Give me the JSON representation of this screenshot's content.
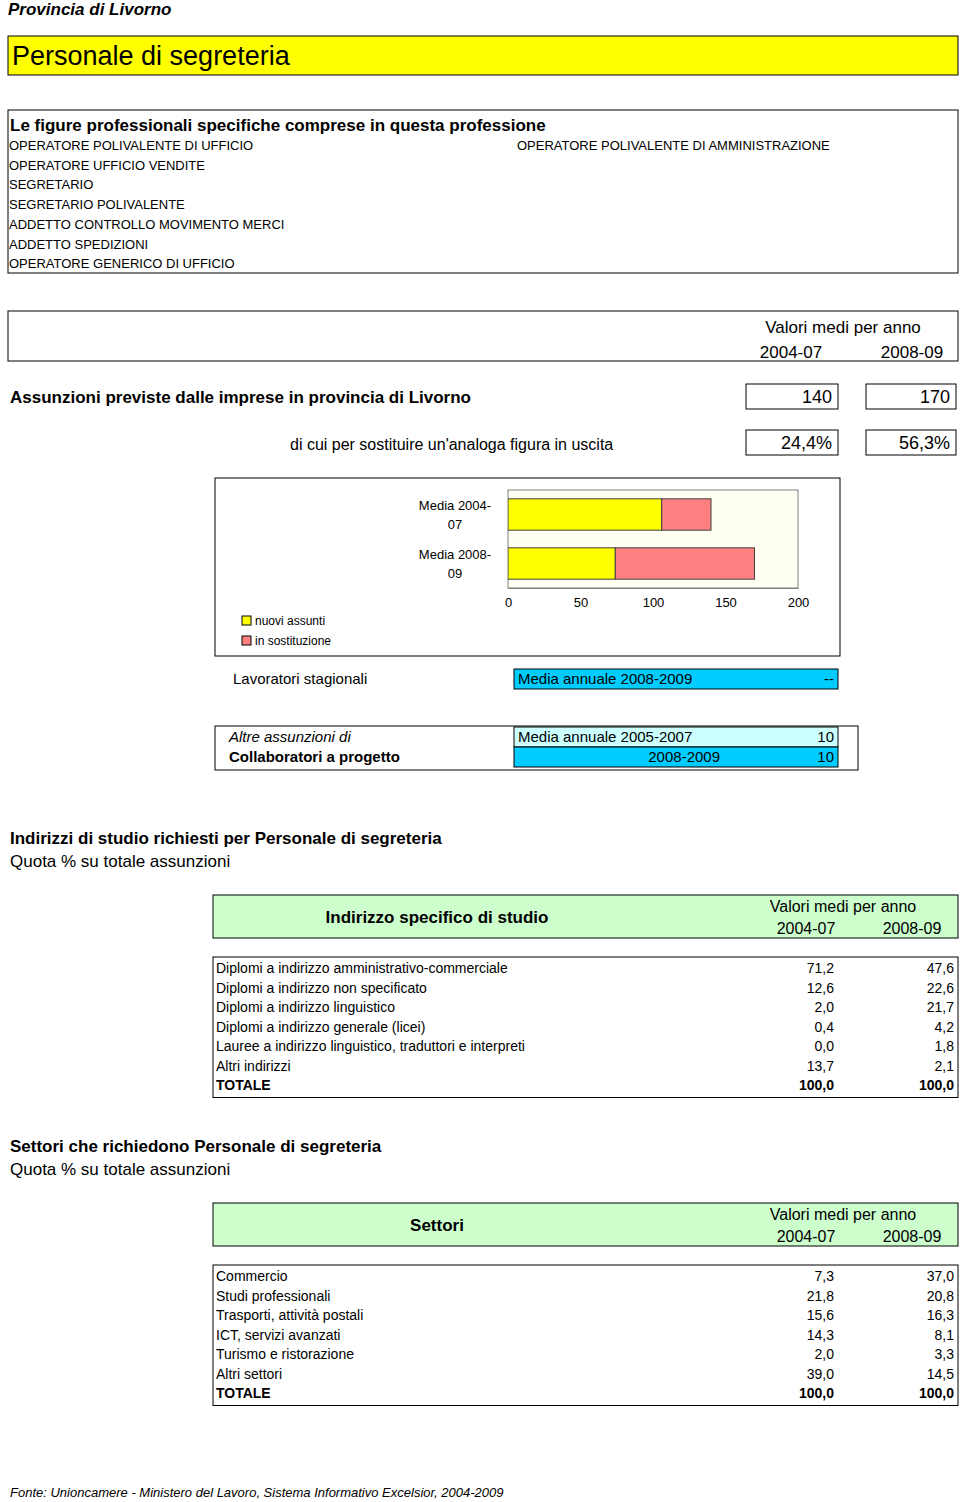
{
  "header": {
    "province": "Provincia di Livorno",
    "title": "Personale di segreteria"
  },
  "figures": {
    "title": "Le figure professionali specifiche comprese in questa professione",
    "left": [
      "OPERATORE POLIVALENTE DI UFFICIO",
      "OPERATORE UFFICIO VENDITE",
      "SEGRETARIO",
      "SEGRETARIO POLIVALENTE",
      "ADDETTO CONTROLLO MOVIMENTO MERCI",
      "ADDETTO SPEDIZIONI",
      "OPERATORE GENERICO DI UFFICIO"
    ],
    "right": [
      "OPERATORE POLIVALENTE DI AMMINISTRAZIONE"
    ]
  },
  "hiring": {
    "period_heading": "Valori medi per anno",
    "periods": [
      "2004-07",
      "2008-09"
    ],
    "rows": [
      {
        "label": "Assunzioni previste dalle imprese in provincia di Livorno",
        "values": [
          "140",
          "170"
        ]
      },
      {
        "label": "di cui per sostituire un'analoga figura in uscita",
        "values": [
          "24,4%",
          "56,3%"
        ]
      }
    ]
  },
  "chart_data": {
    "type": "bar",
    "orientation": "horizontal",
    "stacked": true,
    "categories": [
      "Media 2004-07",
      "Media 2008-09"
    ],
    "series": [
      {
        "name": "nuovi assunti",
        "color": "#ffff00",
        "values": [
          106,
          74
        ]
      },
      {
        "name": "in sostituzione",
        "color": "#ff8080",
        "values": [
          34,
          96
        ]
      }
    ],
    "xlim": [
      0,
      200
    ],
    "xticks": [
      0,
      50,
      100,
      150,
      200
    ],
    "legend": "bottom-left",
    "grid": false
  },
  "seasonal": {
    "label": "Lavoratori stagionali",
    "period": "Media annuale 2008-2009",
    "value": "--"
  },
  "collaborators": {
    "label_1": "Altre assunzioni di",
    "label_2": "Collaboratori a progetto",
    "rows": [
      {
        "period": "Media annuale 2005-2007",
        "value": "10"
      },
      {
        "period": "2008-2009",
        "value": "10"
      }
    ]
  },
  "tables": [
    {
      "title": "Indirizzi di studio richiesti per Personale di segreteria",
      "subtitle": "Quota % su totale assunzioni",
      "column_heading": "Indirizzo specifico di studio",
      "period_heading": "Valori medi per anno",
      "periods": [
        "2004-07",
        "2008-09"
      ],
      "rows": [
        [
          "Diplomi a indirizzo amministrativo-commerciale",
          "71,2",
          "47,6"
        ],
        [
          "Diplomi a indirizzo non specificato",
          "12,6",
          "22,6"
        ],
        [
          "Diplomi a indirizzo linguistico",
          "2,0",
          "21,7"
        ],
        [
          "Diplomi a indirizzo generale (licei)",
          "0,4",
          "4,2"
        ],
        [
          "Lauree a indirizzo linguistico, traduttori e interpreti",
          "0,0",
          "1,8"
        ],
        [
          "Altri indirizzi",
          "13,7",
          "2,1"
        ]
      ],
      "total": [
        "TOTALE",
        "100,0",
        "100,0"
      ]
    },
    {
      "title": "Settori che richiedono Personale di segreteria",
      "subtitle": "Quota % su totale assunzioni",
      "column_heading": "Settori",
      "period_heading": "Valori medi per anno",
      "periods": [
        "2004-07",
        "2008-09"
      ],
      "rows": [
        [
          "Commercio",
          "7,3",
          "37,0"
        ],
        [
          "Studi professionali",
          "21,8",
          "20,8"
        ],
        [
          "Trasporti, attività postali",
          "15,6",
          "16,3"
        ],
        [
          "ICT, servizi avanzati",
          "14,3",
          "8,1"
        ],
        [
          "Turismo e ristorazione",
          "2,0",
          "3,3"
        ],
        [
          "Altri settori",
          "39,0",
          "14,5"
        ]
      ],
      "total": [
        "TOTALE",
        "100,0",
        "100,0"
      ]
    }
  ],
  "source": "Fonte: Unioncamere - Ministero del Lavoro, Sistema Informativo Excelsior, 2004-2009"
}
